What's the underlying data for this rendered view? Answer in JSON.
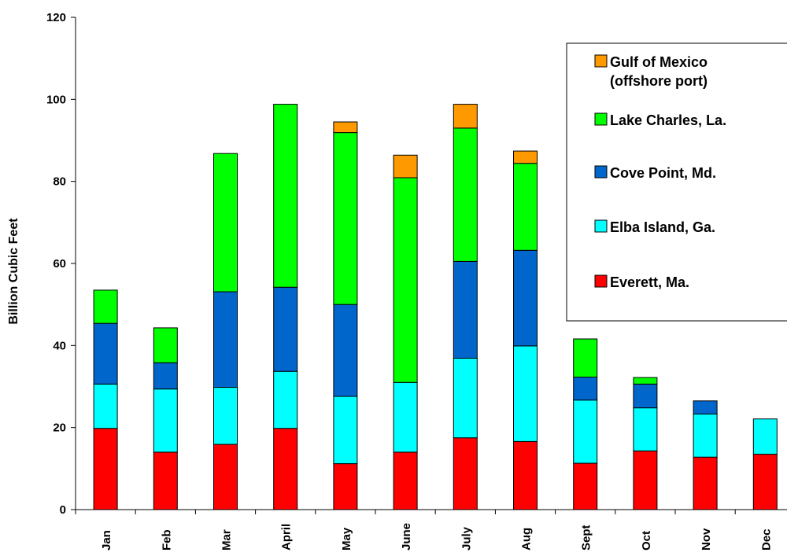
{
  "chart_data": {
    "type": "bar",
    "stacked": true,
    "categories": [
      "Jan",
      "Feb",
      "Mar",
      "April",
      "May",
      "June",
      "July",
      "Aug",
      "Sept",
      "Oct",
      "Nov",
      "Dec"
    ],
    "series": [
      {
        "name": "Everett, Ma.",
        "color": "#ff0000",
        "values": [
          19.8,
          14.0,
          15.9,
          19.8,
          11.2,
          14.0,
          17.5,
          16.6,
          11.3,
          14.3,
          12.8,
          13.5
        ]
      },
      {
        "name": "Elba Island, Ga.",
        "color": "#00ffff",
        "values": [
          10.8,
          15.4,
          13.9,
          13.9,
          16.4,
          17.0,
          19.4,
          23.3,
          15.4,
          10.5,
          10.5,
          8.6
        ]
      },
      {
        "name": "Cove Point, Md.",
        "color": "#0066cc",
        "values": [
          14.8,
          6.4,
          23.3,
          20.5,
          22.4,
          0,
          23.6,
          23.3,
          5.6,
          5.8,
          3.2,
          0
        ]
      },
      {
        "name": "Lake Charles, La.",
        "color": "#00ff00",
        "values": [
          8.1,
          8.5,
          33.7,
          44.6,
          41.9,
          49.9,
          32.5,
          21.2,
          9.3,
          1.6,
          0,
          0
        ]
      },
      {
        "name": "Gulf of Mexico\n(offshore port)",
        "color": "#ff9900",
        "values": [
          0,
          0,
          0,
          0,
          2.6,
          5.5,
          5.8,
          3.0,
          0,
          0,
          0,
          0
        ]
      }
    ],
    "legend_order": [
      4,
      3,
      2,
      1,
      0
    ],
    "legend_position": "top-right",
    "title": "",
    "xlabel": "",
    "ylabel": "Billion Cubic Feet",
    "ylim": [
      0,
      120
    ],
    "yticks": [
      0,
      20,
      40,
      60,
      80,
      100,
      120
    ],
    "grid": false
  }
}
